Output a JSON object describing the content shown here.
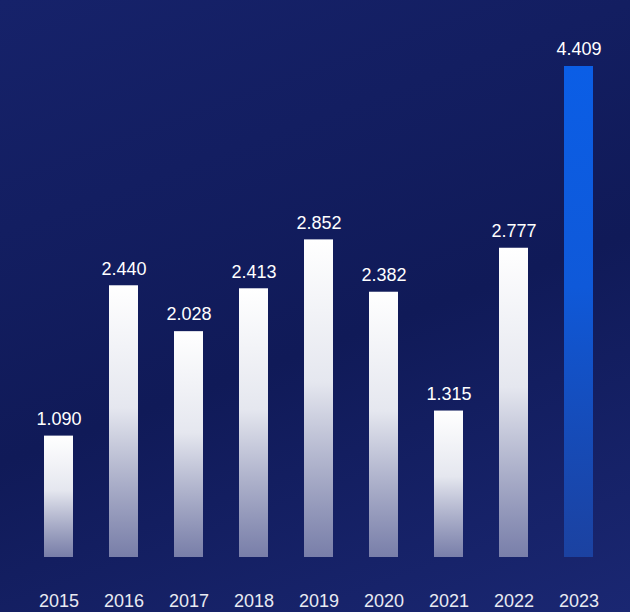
{
  "chart_data": {
    "type": "bar",
    "categories": [
      "2015",
      "2016",
      "2017",
      "2018",
      "2019",
      "2020",
      "2021",
      "2022",
      "2023"
    ],
    "values": [
      1090,
      2440,
      2028,
      2413,
      2852,
      2382,
      1315,
      2777,
      4409
    ],
    "value_labels": [
      "1.090",
      "2.440",
      "2.028",
      "2.413",
      "2.852",
      "2.382",
      "1.315",
      "2.777",
      "4.409"
    ],
    "colors": [
      "#ffffff",
      "#ffffff",
      "#ffffff",
      "#ffffff",
      "#ffffff",
      "#ffffff",
      "#ffffff",
      "#ffffff",
      "#0b5ee6"
    ],
    "ylim": [
      0,
      4409
    ],
    "yticks": [],
    "data_labels": true,
    "tick_labels": "x",
    "grid": false
  }
}
